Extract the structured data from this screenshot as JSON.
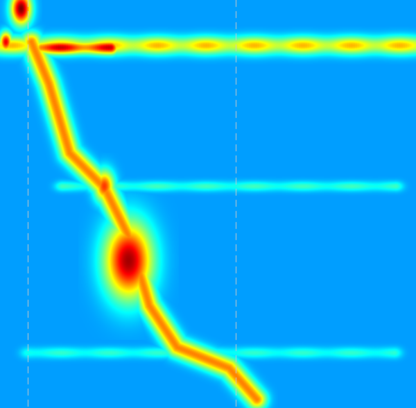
{
  "chart_data": {
    "type": "heatmap",
    "colormap": "jet",
    "background_color": "#0000ff",
    "marker_line_color": "#c8c8c8",
    "title": "",
    "xlabel": "",
    "ylabel": "",
    "vertical_markers": [
      40,
      340
    ],
    "features": [
      {
        "kind": "band",
        "y": 65,
        "x_start": 0,
        "x_end": 600,
        "intensity": 0.58,
        "width": 18
      },
      {
        "kind": "band",
        "y": 68,
        "x_start": 60,
        "x_end": 160,
        "intensity": 0.9,
        "width": 14
      },
      {
        "kind": "band",
        "y": 268,
        "x_start": 90,
        "x_end": 570,
        "intensity": 0.22,
        "width": 10
      },
      {
        "kind": "band",
        "y": 508,
        "x_start": 40,
        "x_end": 570,
        "intensity": 0.2,
        "width": 11
      },
      {
        "kind": "trace",
        "points": [
          [
            45,
            60
          ],
          [
            70,
            120
          ],
          [
            100,
            220
          ],
          [
            150,
            270
          ],
          [
            185,
            340
          ],
          [
            215,
            440
          ],
          [
            255,
            500
          ],
          [
            330,
            530
          ],
          [
            370,
            575
          ]
        ],
        "intensity": 0.65,
        "width": 20
      },
      {
        "kind": "blob",
        "x": 185,
        "y": 375,
        "r": 38,
        "intensity": 0.95
      },
      {
        "kind": "blob",
        "x": 150,
        "y": 268,
        "r": 16,
        "intensity": 0.75
      },
      {
        "kind": "blob",
        "x": 30,
        "y": 12,
        "r": 16,
        "intensity": 1.0
      },
      {
        "kind": "blob",
        "x": 8,
        "y": 60,
        "r": 10,
        "intensity": 0.85
      }
    ]
  }
}
